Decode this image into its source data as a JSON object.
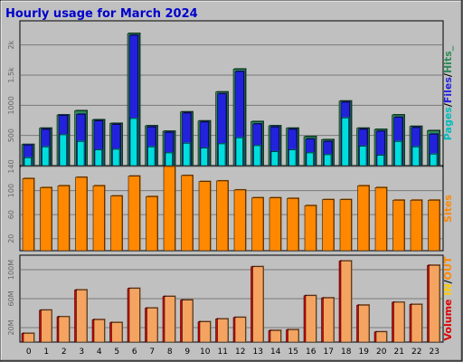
{
  "chart_data": {
    "type": "bar",
    "title": "Hourly usage for March 2024",
    "categories": [
      "0",
      "1",
      "2",
      "3",
      "4",
      "5",
      "6",
      "7",
      "8",
      "9",
      "10",
      "11",
      "12",
      "13",
      "14",
      "15",
      "16",
      "17",
      "18",
      "19",
      "20",
      "21",
      "22",
      "23"
    ],
    "panels": [
      {
        "label_parts": [
          {
            "text": "Pages",
            "color": "#00bbbb"
          },
          {
            "text": "/",
            "color": "#000000"
          },
          {
            "text": "Files",
            "color": "#2222dd"
          },
          {
            "text": "/",
            "color": "#000000"
          },
          {
            "text": "Hits",
            "color": "#2e8b57"
          },
          {
            "text": "_",
            "color": "#2e8b57"
          }
        ],
        "ylim": [
          0,
          2400
        ],
        "yticks": [
          500,
          1000,
          1500,
          2000
        ],
        "ytick_labels": [
          "500",
          "1000",
          "1.5k",
          "2k"
        ],
        "series": [
          {
            "name": "Hits",
            "color": "#2e8b57",
            "values": [
              350,
              620,
              840,
              910,
              760,
              700,
              2190,
              660,
              570,
              890,
              740,
              1220,
              1600,
              730,
              660,
              620,
              480,
              430,
              1070,
              620,
              600,
              840,
              650,
              580
            ]
          },
          {
            "name": "Files",
            "color": "#2222dd",
            "values": [
              340,
              600,
              830,
              850,
              740,
              680,
              2160,
              640,
              550,
              870,
              720,
              1190,
              1560,
              690,
              640,
              600,
              440,
              400,
              1050,
              600,
              570,
              800,
              630,
              520
            ]
          },
          {
            "name": "Pages",
            "color": "#00dddd",
            "values": [
              130,
              310,
              510,
              400,
              260,
              270,
              780,
              310,
              210,
              370,
              290,
              360,
              460,
              330,
              230,
              260,
              210,
              180,
              790,
              320,
              170,
              400,
              310,
              190
            ]
          }
        ]
      },
      {
        "label_parts": [
          {
            "text": "Sites",
            "color": "#ff8800"
          }
        ],
        "ylim": [
          0,
          140
        ],
        "yticks": [
          20,
          60,
          100,
          140
        ],
        "ytick_labels": [
          "20",
          "60",
          "100",
          "140"
        ],
        "series": [
          {
            "name": "Sites",
            "color": "#ff8800",
            "values": [
              120,
              105,
              108,
              122,
              108,
              91,
              124,
              90,
              140,
              125,
              115,
              116,
              101,
              88,
              88,
              87,
              75,
              85,
              85,
              108,
              105,
              84,
              84,
              84
            ]
          }
        ]
      },
      {
        "label_parts": [
          {
            "text": "Volume",
            "color": "#dd0000"
          },
          {
            "text": "  ",
            "color": "#000000"
          },
          {
            "text": "IN",
            "color": "#ffcc00"
          },
          {
            "text": "/",
            "color": "#000000"
          },
          {
            "text": "OUT",
            "color": "#ff8800"
          }
        ],
        "ylim": [
          0,
          120
        ],
        "yticks": [
          20,
          60,
          100
        ],
        "ytick_labels": [
          "20M",
          "60M",
          "100M"
        ],
        "series": [
          {
            "name": "Volume",
            "color": "#dd0000",
            "values": [
              12,
              44,
              35,
              72,
              31,
              27,
              74,
              47,
              63,
              58,
              28,
              32,
              34,
              104,
              16,
              17,
              64,
              61,
              112,
              51,
              14,
              55,
              52,
              106
            ]
          },
          {
            "name": "OUT",
            "color": "#f4a460",
            "values": [
              12,
              44,
              35,
              72,
              31,
              27,
              74,
              47,
              63,
              58,
              28,
              32,
              34,
              104,
              16,
              17,
              64,
              61,
              112,
              51,
              14,
              55,
              52,
              106
            ]
          }
        ]
      }
    ]
  }
}
